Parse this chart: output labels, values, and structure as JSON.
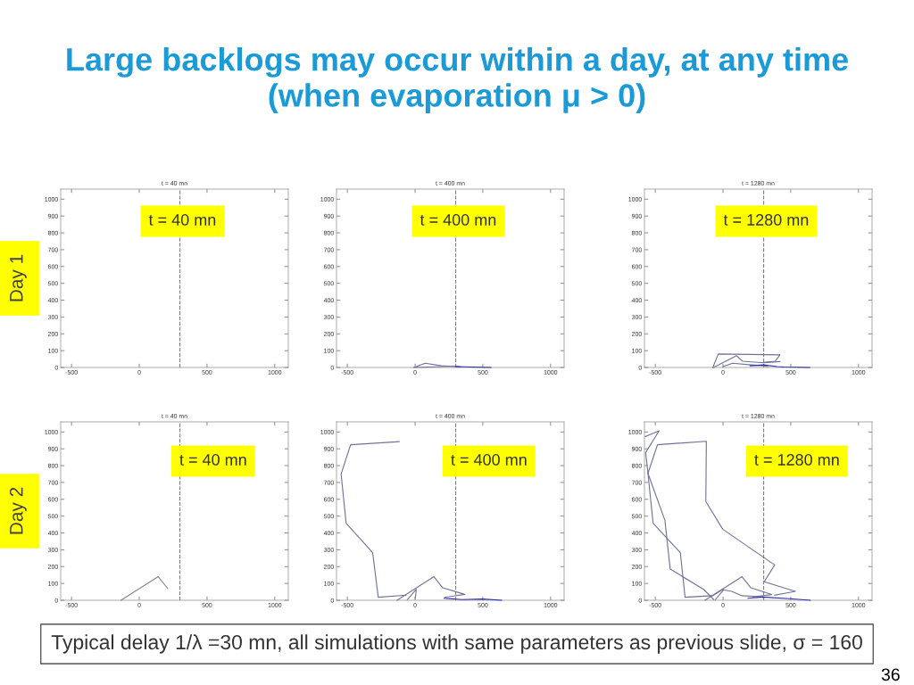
{
  "chart_data": [
    {
      "type": "line",
      "title": "t = 40 mn",
      "ylabel": "Day 1",
      "annotations": [
        "t = 40 mn",
        "Large backlogs may occur within a day, at any time\n(when evaporation μ > 0)"
      ],
      "xlim": [
        -580,
        1100
      ],
      "ylim": [
        0,
        1060
      ],
      "xticks": [
        -500,
        0,
        500,
        1000
      ],
      "yticks": [
        0,
        100,
        200,
        300,
        400,
        500,
        600,
        700,
        800,
        900,
        1000
      ],
      "ref_lines": [
        {
          "axis": "x",
          "value": 300,
          "color": "#7f7f7f",
          "line_style": "dashed"
        }
      ]
    },
    {
      "type": "line",
      "title": "t = 400 mn",
      "annotations": [
        "t = 400 mn"
      ],
      "xlim": [
        -580,
        1100
      ],
      "ylim": [
        0,
        1060
      ],
      "xticks": [
        -500,
        0,
        500,
        1000
      ],
      "yticks": [
        0,
        100,
        200,
        300,
        400,
        500,
        600,
        700,
        800,
        900,
        1000
      ],
      "line_style": "solid",
      "ref_lines": [
        {
          "axis": "x",
          "value": 300,
          "color": "#7f7f7f",
          "line_style": "dashed"
        }
      ],
      "series": [
        {
          "color": "#70709a",
          "x": [
            -10,
            75,
            195,
            310,
            330
          ],
          "values": [
            0,
            25,
            10,
            5,
            3
          ]
        },
        {
          "color": "#70709a",
          "x": [
            0,
            300,
            340
          ],
          "values": [
            0,
            8,
            3
          ]
        },
        {
          "color": "#2a2ab0",
          "x": [
            300,
            420,
            560
          ],
          "values": [
            5,
            3,
            0
          ]
        }
      ]
    },
    {
      "type": "line",
      "title": "t = 1280 mn",
      "annotations": [
        "t = 1280 mn"
      ],
      "xlim": [
        -580,
        1100
      ],
      "ylim": [
        0,
        1060
      ],
      "xticks": [
        -500,
        0,
        500,
        1000
      ],
      "yticks": [
        0,
        100,
        200,
        300,
        400,
        500,
        600,
        700,
        800,
        900,
        1000
      ],
      "line_style": "solid",
      "ref_lines": [
        {
          "axis": "x",
          "value": 300,
          "color": "#7f7f7f",
          "line_style": "dashed"
        }
      ],
      "series": [
        {
          "color": "#70709a",
          "x": [
            -75,
            -35,
            420,
            385,
            300
          ],
          "values": [
            0,
            80,
            75,
            37,
            30
          ]
        },
        {
          "color": "#70709a",
          "x": [
            -70,
            100,
            145,
            300,
            420
          ],
          "values": [
            0,
            70,
            37,
            28,
            35
          ]
        },
        {
          "color": "#70709a",
          "x": [
            0,
            70,
            210,
            300,
            330
          ],
          "values": [
            5,
            25,
            15,
            10,
            5
          ]
        },
        {
          "color": "#2a2ab0",
          "x": [
            200,
            300,
            400,
            450,
            640
          ],
          "values": [
            10,
            15,
            5,
            3,
            0
          ]
        }
      ]
    },
    {
      "type": "line",
      "title": "t = 40 mn",
      "ylabel": "Day 2",
      "annotations": [
        "t = 40 mn"
      ],
      "xlim": [
        -580,
        1100
      ],
      "ylim": [
        0,
        1060
      ],
      "xticks": [
        -500,
        0,
        500,
        1000
      ],
      "yticks": [
        0,
        100,
        200,
        300,
        400,
        500,
        600,
        700,
        800,
        900,
        1000
      ],
      "line_style": "solid",
      "ref_lines": [
        {
          "axis": "x",
          "value": 300,
          "color": "#7f7f7f",
          "line_style": "dashed"
        }
      ],
      "series": [
        {
          "color": "#808090",
          "x": [
            -135,
            140,
            210
          ],
          "values": [
            0,
            140,
            70
          ]
        }
      ]
    },
    {
      "type": "line",
      "title": "t = 400 mn",
      "annotations": [
        "t = 400 mn"
      ],
      "xlim": [
        -580,
        1100
      ],
      "ylim": [
        0,
        1060
      ],
      "xticks": [
        -500,
        0,
        500,
        1000
      ],
      "yticks": [
        0,
        100,
        200,
        300,
        400,
        500,
        600,
        700,
        800,
        900,
        1000
      ],
      "line_style": "solid",
      "ref_lines": [
        {
          "axis": "x",
          "value": 300,
          "color": "#7f7f7f",
          "line_style": "dashed"
        }
      ],
      "series": [
        {
          "color": "#70709a",
          "x": [
            -117,
            -476,
            -546,
            -509,
            -313,
            -272,
            -67
          ],
          "values": [
            943,
            924,
            751,
            458,
            283,
            18,
            30
          ]
        },
        {
          "color": "#70709a",
          "x": [
            -133,
            139,
            204,
            367,
            220
          ],
          "values": [
            0,
            140,
            74,
            35,
            18
          ]
        },
        {
          "color": "#70709a",
          "x": [
            -57,
            9,
            2
          ],
          "values": [
            4,
            65,
            12
          ]
        },
        {
          "color": "#2a2ab0",
          "x": [
            215,
            346,
            498,
            639
          ],
          "values": [
            12,
            4,
            7,
            0
          ]
        }
      ]
    },
    {
      "type": "line",
      "title": "t = 1280 mn",
      "annotations": [
        "t = 1280 mn",
        "Typical delay 1/λ =30 mn, all simulations with same parameters as previous slide, σ = 160",
        "36"
      ],
      "xlim": [
        -580,
        1100
      ],
      "ylim": [
        0,
        1060
      ],
      "xticks": [
        -500,
        0,
        500,
        1000
      ],
      "yticks": [
        0,
        100,
        200,
        300,
        400,
        500,
        600,
        700,
        800,
        900,
        1000
      ],
      "line_style": "solid",
      "ref_lines": [
        {
          "axis": "x",
          "value": 300,
          "color": "#7f7f7f",
          "line_style": "dashed"
        }
      ],
      "series": [
        {
          "color": "#70709a",
          "x": [
            -575,
            -472,
            -571,
            -554,
            -429,
            -390,
            -144,
            -68
          ],
          "values": [
            973,
            1007,
            878,
            754,
            475,
            186,
            65,
            4
          ]
        },
        {
          "color": "#70709a",
          "x": [
            381,
            534,
            304,
            381,
            -2,
            -127,
            -123,
            -484,
            -554,
            -516,
            -315,
            -280,
            -79,
            0
          ],
          "values": [
            30,
            53,
            110,
            210,
            422,
            587,
            945,
            924,
            754,
            458,
            283,
            18,
            27,
            65
          ]
        },
        {
          "color": "#70709a",
          "x": [
            -133,
            140,
            206,
            359,
            220
          ],
          "values": [
            0,
            140,
            74,
            34,
            20
          ]
        },
        {
          "color": "#70709a",
          "x": [
            -57,
            4,
            64,
            140,
            300
          ],
          "values": [
            4,
            62,
            53,
            27,
            20
          ]
        },
        {
          "color": "#2a2ab0",
          "x": [
            184,
            293,
            490,
            643
          ],
          "values": [
            12,
            19,
            9,
            0
          ]
        }
      ]
    }
  ]
}
